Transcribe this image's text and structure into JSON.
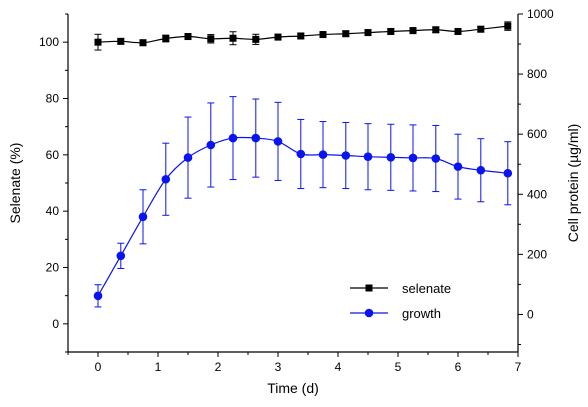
{
  "chart_data": {
    "type": "line",
    "xlabel": "Time (d)",
    "ylabel_left": "Selenate (%)",
    "ylabel_right": "Cell protein (µg/ml)",
    "xlim": [
      -0.5,
      7.0
    ],
    "ylim_left": [
      -10,
      110
    ],
    "ylim_right": [
      -125,
      1000
    ],
    "x_ticks": [
      0,
      1,
      2,
      3,
      4,
      5,
      6,
      7
    ],
    "y_left_ticks": [
      0,
      20,
      40,
      60,
      80,
      100
    ],
    "y_right_ticks": [
      0,
      200,
      400,
      600,
      800,
      1000
    ],
    "legend_position": "lower-right",
    "series": [
      {
        "name": "selenate",
        "axis": "left",
        "marker": "square",
        "color": "#000000",
        "x": [
          0,
          0.38,
          0.75,
          1.13,
          1.5,
          1.88,
          2.25,
          2.63,
          3.0,
          3.38,
          3.75,
          4.13,
          4.5,
          4.88,
          5.25,
          5.63,
          6.0,
          6.38,
          6.83
        ],
        "y": [
          100.0,
          100.3,
          99.8,
          101.3,
          102.0,
          101.2,
          101.4,
          101.0,
          101.8,
          102.2,
          102.7,
          103.0,
          103.4,
          103.8,
          104.1,
          104.4,
          103.8,
          104.6,
          105.7
        ],
        "err": [
          2.8,
          1.0,
          1.0,
          1.2,
          1.0,
          1.5,
          2.3,
          1.8,
          1.0,
          1.0,
          1.0,
          1.0,
          1.0,
          1.0,
          1.0,
          1.0,
          1.0,
          1.0,
          1.5
        ]
      },
      {
        "name": "growth",
        "axis": "right",
        "marker": "circle",
        "color": "#0a14f0",
        "x": [
          0,
          0.38,
          0.75,
          1.13,
          1.5,
          1.88,
          2.25,
          2.63,
          3.0,
          3.38,
          3.75,
          4.13,
          4.5,
          4.88,
          5.25,
          5.63,
          6.0,
          6.38,
          6.83
        ],
        "y": [
          62,
          195,
          325,
          450,
          522,
          564,
          587,
          587,
          576,
          534,
          532,
          529,
          525,
          523,
          521,
          519,
          492,
          480,
          470
        ],
        "err": [
          37,
          42,
          90,
          120,
          135,
          140,
          138,
          130,
          130,
          115,
          110,
          110,
          110,
          110,
          110,
          110,
          108,
          105,
          105
        ]
      }
    ]
  }
}
